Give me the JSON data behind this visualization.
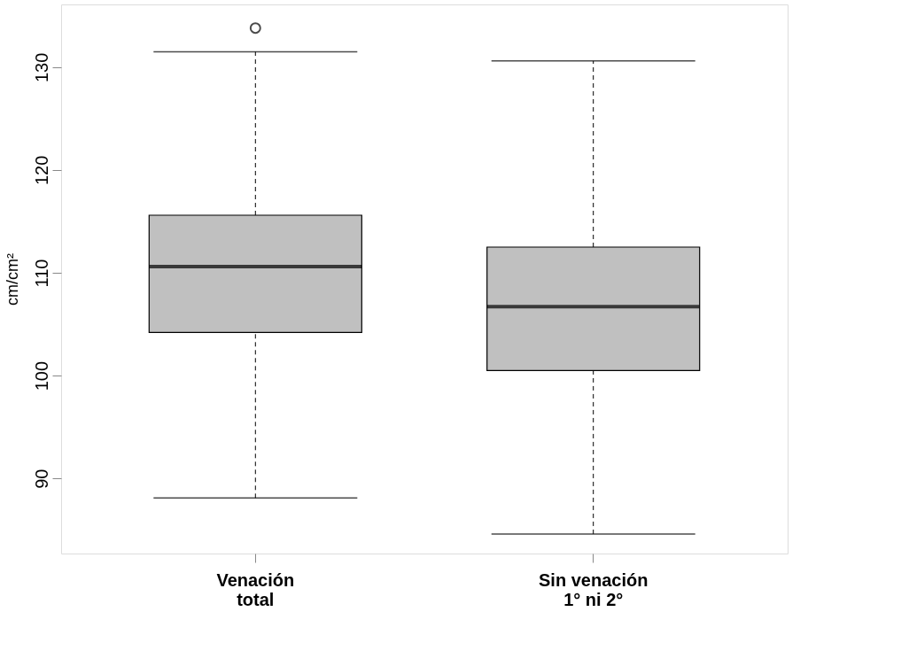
{
  "chart_data": {
    "type": "box",
    "ylabel": "cm/cm²",
    "categories": [
      "Venación\ntotal",
      "Sin venación\n1° ni 2°"
    ],
    "boxes": [
      {
        "low": 88.1,
        "q1": 104.2,
        "median": 110.6,
        "q3": 115.6,
        "high": 131.5,
        "outliers": [
          133.8
        ]
      },
      {
        "low": 84.6,
        "q1": 100.5,
        "median": 106.7,
        "q3": 112.5,
        "high": 130.6
      }
    ],
    "color": "#c0c0c0",
    "ylim": [
      82.7,
      136.1
    ],
    "yticks": [
      90,
      100,
      110,
      120,
      130
    ],
    "grid": false
  }
}
